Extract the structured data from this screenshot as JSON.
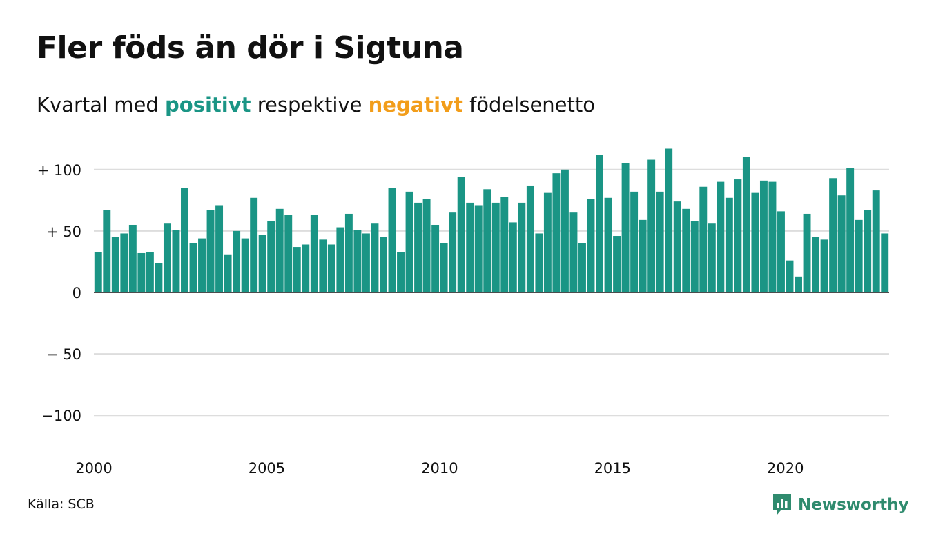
{
  "header": {
    "title": "Fler föds än dör i Sigtuna",
    "subtitle_pre": "Kvartal med",
    "subtitle_pos": "positivt",
    "subtitle_mid": "respektive",
    "subtitle_neg": "negativt",
    "subtitle_post": "födelsenetto"
  },
  "footer": {
    "source": "Källa: SCB",
    "brand": "Newsworthy"
  },
  "colors": {
    "positive": "#1a9585",
    "negative": "#f29d1a",
    "grid": "#dddddd",
    "axis": "#111111",
    "brand": "#2f8b6e"
  },
  "chart_data": {
    "type": "bar",
    "title": "Fler föds än dör i Sigtuna",
    "subtitle": "Kvartal med positivt respektive negativt födelsenetto",
    "xlabel": "",
    "ylabel": "",
    "ylim": [
      -125,
      125
    ],
    "yticks": [
      {
        "value": 100,
        "label": "+ 100"
      },
      {
        "value": 50,
        "label": "+  50"
      },
      {
        "value": 0,
        "label": "0"
      },
      {
        "value": -50,
        "label": "− 50"
      },
      {
        "value": -100,
        "label": "−100"
      }
    ],
    "xticks": [
      {
        "value": 2000,
        "label": "2000"
      },
      {
        "value": 2005,
        "label": "2005"
      },
      {
        "value": 2010,
        "label": "2010"
      },
      {
        "value": 2015,
        "label": "2015"
      },
      {
        "value": 2020,
        "label": "2020"
      }
    ],
    "start_period": "2000 Q1",
    "grid": true,
    "legend": "none",
    "values": [
      33,
      67,
      45,
      48,
      55,
      32,
      33,
      24,
      56,
      51,
      85,
      40,
      44,
      67,
      71,
      31,
      50,
      44,
      77,
      47,
      58,
      68,
      63,
      37,
      39,
      63,
      43,
      39,
      53,
      64,
      51,
      48,
      56,
      45,
      85,
      33,
      82,
      73,
      76,
      55,
      40,
      65,
      94,
      73,
      71,
      84,
      73,
      78,
      57,
      73,
      87,
      48,
      81,
      97,
      100,
      65,
      40,
      76,
      112,
      77,
      46,
      105,
      82,
      59,
      108,
      82,
      117,
      74,
      68,
      58,
      86,
      56,
      90,
      77,
      92,
      110,
      81,
      91,
      90,
      66,
      26,
      13,
      64,
      45,
      43,
      93,
      79,
      101,
      59,
      67,
      83,
      48
    ]
  }
}
